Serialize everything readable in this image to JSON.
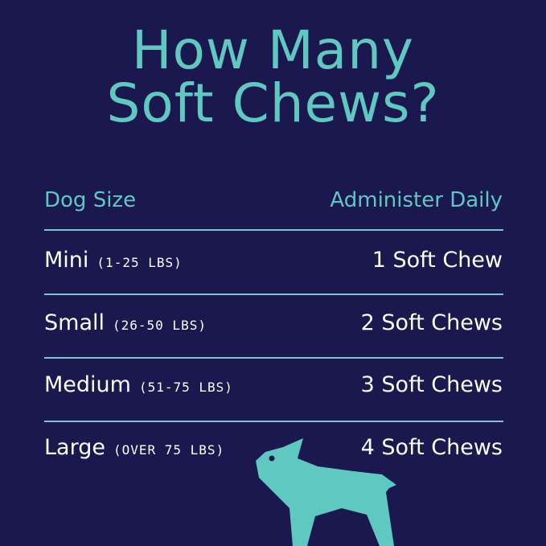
{
  "title": {
    "line1": "How Many",
    "line2": "Soft Chews?"
  },
  "header": {
    "left": "Dog Size",
    "right": "Administer Daily"
  },
  "rows": [
    {
      "size": "Mini",
      "weight": "(1-25 LBS)",
      "dose": "1 Soft Chew"
    },
    {
      "size": "Small",
      "weight": "(26-50 LBS)",
      "dose": "2 Soft Chews"
    },
    {
      "size": "Medium",
      "weight": "(51-75 LBS)",
      "dose": "3 Soft Chews"
    },
    {
      "size": "Large",
      "weight": "(OVER 75 LBS)",
      "dose": "4 Soft Chews"
    }
  ],
  "colors": {
    "background": "#1b184f",
    "accent": "#5fc9c1",
    "divider": "#7cc3d4",
    "text": "#ffffff"
  },
  "illustration": "dog-silhouette-icon"
}
